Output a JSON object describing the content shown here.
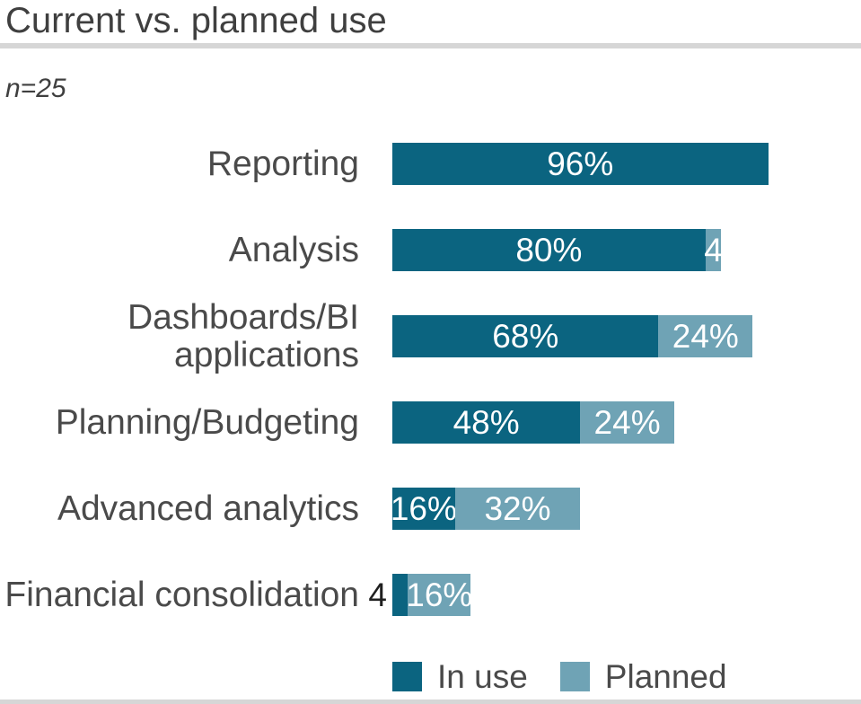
{
  "chart_data": {
    "type": "bar",
    "orientation": "horizontal",
    "stacked": true,
    "title": "Current vs. planned use",
    "sample_size": "n=25",
    "unit": "%",
    "xlim": [
      0,
      100
    ],
    "grid": false,
    "legend_position": "bottom",
    "categories": [
      "Reporting",
      "Analysis",
      "Dashboards/BI applications",
      "Planning/Budgeting",
      "Advanced analytics",
      "Financial consolidation"
    ],
    "series": [
      {
        "name": "In use",
        "color": "#0b6480",
        "values": [
          96,
          80,
          68,
          48,
          16,
          4
        ]
      },
      {
        "name": "Planned",
        "color": "#6fa3b5",
        "values": [
          0,
          4,
          24,
          24,
          32,
          16
        ]
      }
    ],
    "rows": [
      {
        "label": "Reporting",
        "segments": [
          {
            "series": "in_use",
            "value": 96,
            "text": "96%",
            "text_style": "inside"
          }
        ]
      },
      {
        "label": "Analysis",
        "segments": [
          {
            "series": "in_use",
            "value": 80,
            "text": "80%",
            "text_style": "inside"
          },
          {
            "series": "planned",
            "value": 4,
            "text": "4",
            "text_style": "inside"
          }
        ]
      },
      {
        "label": "Dashboards/BI applications",
        "segments": [
          {
            "series": "in_use",
            "value": 68,
            "text": "68%",
            "text_style": "inside"
          },
          {
            "series": "planned",
            "value": 24,
            "text": "24%",
            "text_style": "inside"
          }
        ]
      },
      {
        "label": "Planning/Budgeting",
        "segments": [
          {
            "series": "in_use",
            "value": 48,
            "text": "48%",
            "text_style": "inside"
          },
          {
            "series": "planned",
            "value": 24,
            "text": "24%",
            "text_style": "inside"
          }
        ]
      },
      {
        "label": "Advanced analytics",
        "segments": [
          {
            "series": "in_use",
            "value": 16,
            "text": "16%",
            "text_style": "inside"
          },
          {
            "series": "planned",
            "value": 32,
            "text": "32%",
            "text_style": "inside"
          }
        ]
      },
      {
        "label": "Financial consolidation",
        "segments": [
          {
            "series": "in_use",
            "value": 4,
            "text": "4",
            "text_style": "outside-left"
          },
          {
            "series": "planned",
            "value": 16,
            "text": "16%",
            "text_style": "inside"
          }
        ]
      }
    ],
    "legend": {
      "items": [
        {
          "label": "In use",
          "color": "#0b6480"
        },
        {
          "label": "Planned",
          "color": "#6fa3b5"
        }
      ]
    }
  },
  "colors": {
    "in_use": "#0b6480",
    "planned": "#6fa3b5",
    "title_text": "#3f3f3f",
    "label_text": "#4a4a4a",
    "value_text_light": "#ffffff",
    "value_text_dark": "#1f1f1f",
    "divider": "#d6d6d6",
    "background": "#ffffff"
  }
}
